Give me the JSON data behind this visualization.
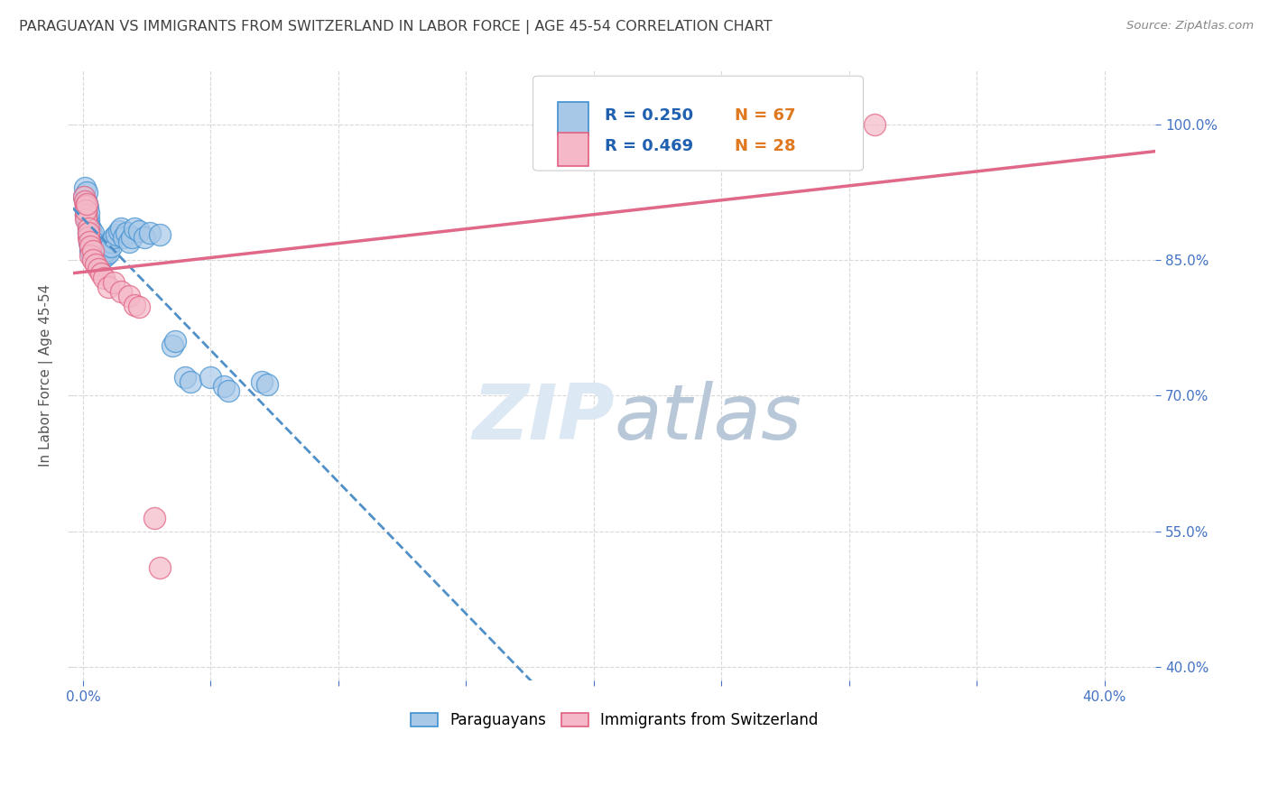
{
  "title": "PARAGUAYAN VS IMMIGRANTS FROM SWITZERLAND IN LABOR FORCE | AGE 45-54 CORRELATION CHART",
  "source": "Source: ZipAtlas.com",
  "ylabel": "In Labor Force | Age 45-54",
  "blue_R": 0.25,
  "blue_N": 67,
  "pink_R": 0.469,
  "pink_N": 28,
  "blue_color": "#a8c8e8",
  "pink_color": "#f4b8c8",
  "blue_edge_color": "#4090d0",
  "pink_edge_color": "#e06080",
  "blue_line_color": "#5090c8",
  "pink_line_color": "#e06888",
  "title_color": "#404040",
  "source_color": "#888888",
  "legend_R_color": "#2060b0",
  "legend_N_color": "#e07820",
  "background_color": "#ffffff",
  "grid_color": "#d8d8d8",
  "axis_color": "#4472c4",
  "watermark_color": "#dce8f4",
  "xlim": [
    -0.004,
    0.42
  ],
  "ylim": [
    0.385,
    1.06
  ],
  "xtick_vals": [
    0.0,
    0.05,
    0.1,
    0.15,
    0.2,
    0.25,
    0.3,
    0.35,
    0.4
  ],
  "xtick_labels": [
    "0.0%",
    "",
    "",
    "",
    "",
    "",
    "",
    "",
    "40.0%"
  ],
  "ytick_vals": [
    0.4,
    0.55,
    0.7,
    0.85,
    1.0
  ],
  "ytick_labels_right": [
    "40.0%",
    "55.0%",
    "70.0%",
    "85.0%",
    "100.0%"
  ],
  "blue_x": [
    0.0005,
    0.0008,
    0.001,
    0.001,
    0.001,
    0.0012,
    0.0013,
    0.0015,
    0.0015,
    0.0018,
    0.002,
    0.002,
    0.002,
    0.002,
    0.0022,
    0.0025,
    0.0025,
    0.003,
    0.003,
    0.003,
    0.003,
    0.003,
    0.0035,
    0.004,
    0.004,
    0.004,
    0.004,
    0.0045,
    0.005,
    0.005,
    0.005,
    0.0055,
    0.006,
    0.006,
    0.006,
    0.007,
    0.007,
    0.008,
    0.008,
    0.009,
    0.009,
    0.01,
    0.01,
    0.011,
    0.011,
    0.012,
    0.013,
    0.014,
    0.015,
    0.016,
    0.017,
    0.018,
    0.019,
    0.02,
    0.022,
    0.024,
    0.026,
    0.03,
    0.035,
    0.036,
    0.04,
    0.042,
    0.05,
    0.055,
    0.057,
    0.07,
    0.072
  ],
  "blue_y": [
    0.92,
    0.93,
    0.91,
    0.915,
    0.9,
    0.905,
    0.895,
    0.925,
    0.912,
    0.908,
    0.885,
    0.89,
    0.895,
    0.902,
    0.88,
    0.875,
    0.87,
    0.885,
    0.878,
    0.872,
    0.865,
    0.86,
    0.855,
    0.87,
    0.875,
    0.88,
    0.865,
    0.86,
    0.862,
    0.868,
    0.855,
    0.85,
    0.858,
    0.852,
    0.848,
    0.85,
    0.855,
    0.858,
    0.862,
    0.855,
    0.86,
    0.865,
    0.858,
    0.87,
    0.865,
    0.875,
    0.878,
    0.882,
    0.885,
    0.875,
    0.88,
    0.87,
    0.875,
    0.885,
    0.882,
    0.875,
    0.88,
    0.878,
    0.755,
    0.76,
    0.72,
    0.715,
    0.72,
    0.71,
    0.705,
    0.715,
    0.712
  ],
  "pink_x": [
    0.0005,
    0.0008,
    0.001,
    0.001,
    0.001,
    0.0012,
    0.0015,
    0.002,
    0.002,
    0.002,
    0.0025,
    0.003,
    0.003,
    0.004,
    0.004,
    0.005,
    0.006,
    0.007,
    0.008,
    0.01,
    0.012,
    0.015,
    0.018,
    0.02,
    0.022,
    0.028,
    0.03,
    0.31
  ],
  "pink_y": [
    0.92,
    0.915,
    0.91,
    0.9,
    0.895,
    0.905,
    0.912,
    0.885,
    0.875,
    0.88,
    0.87,
    0.865,
    0.855,
    0.86,
    0.85,
    0.845,
    0.84,
    0.835,
    0.83,
    0.82,
    0.825,
    0.815,
    0.81,
    0.8,
    0.798,
    0.565,
    0.51,
    1.0
  ],
  "marker_size": 300
}
